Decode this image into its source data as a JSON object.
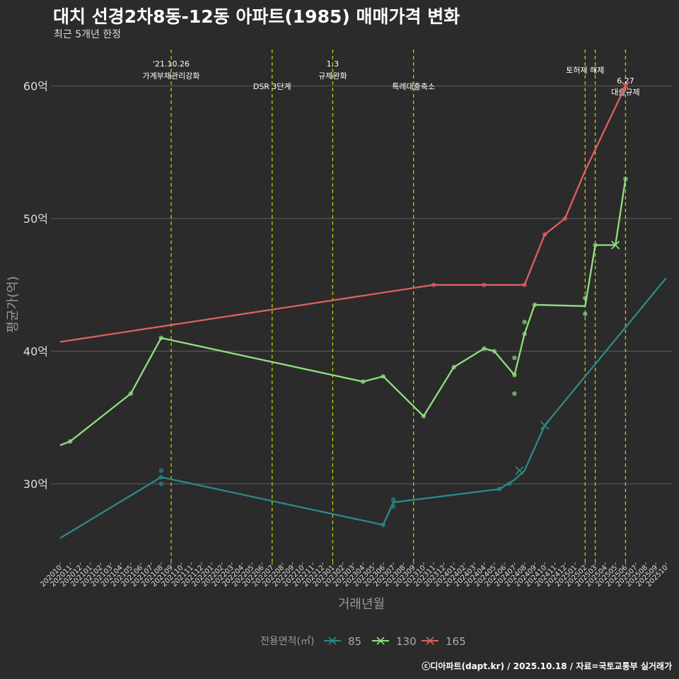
{
  "title": "대치 선경2차8동-12동 아파트(1985) 매매가격 변화",
  "subtitle": "최근 5개년 한정",
  "footer": "ⓒ디아파트(dapt.kr) / 2025.10.18 / 자료=국토교통부 실거래가",
  "colors": {
    "background": "#2b2b2b",
    "grid": "#555555",
    "event_line": "#c8c800",
    "s85": "#2a8a8a",
    "s130": "#90e080",
    "s165": "#e06060"
  },
  "chart_data": {
    "type": "line",
    "xlabel": "거래년월",
    "ylabel": "평균가(억)",
    "ylim": [
      24.5,
      62.5
    ],
    "yticks": [
      30,
      40,
      50,
      60
    ],
    "ytick_labels": [
      "30억",
      "40억",
      "50억",
      "60억"
    ],
    "xlim": [
      0,
      60
    ],
    "categories": [
      "202010",
      "202011",
      "202012",
      "202101",
      "202102",
      "202103",
      "202104",
      "202105",
      "202106",
      "202107",
      "202108",
      "202109",
      "202110",
      "202111",
      "202112",
      "202201",
      "202202",
      "202203",
      "202204",
      "202205",
      "202206",
      "202207",
      "202208",
      "202209",
      "202210",
      "202211",
      "202212",
      "202301",
      "202302",
      "202303",
      "202304",
      "202305",
      "202306",
      "202307",
      "202308",
      "202309",
      "202310",
      "202311",
      "202312",
      "202401",
      "202402",
      "202403",
      "202404",
      "202405",
      "202406",
      "202407",
      "202408",
      "202409",
      "202410",
      "202411",
      "202412",
      "202501",
      "202502",
      "202503",
      "202504",
      "202505",
      "202506",
      "202507",
      "202508",
      "202509",
      "202510"
    ],
    "legend_title": "전용면적(㎡)",
    "legend_position": "bottom",
    "series": [
      {
        "name": "85",
        "color_key": "s85",
        "line": [
          [
            0,
            25.9
          ],
          [
            10,
            30.5
          ],
          [
            32,
            26.9
          ],
          [
            33,
            28.6
          ],
          [
            43.5,
            29.6
          ],
          [
            45,
            30.3
          ],
          [
            46,
            31.0
          ],
          [
            48,
            34.4
          ],
          [
            60,
            45.5
          ]
        ],
        "points": [
          [
            10,
            31.0
          ],
          [
            10,
            30.0
          ],
          [
            10,
            30.5
          ],
          [
            32,
            26.9
          ],
          [
            33,
            28.3
          ],
          [
            33,
            28.8
          ],
          [
            43.5,
            29.6
          ],
          [
            44.5,
            30.0
          ]
        ],
        "cross": [
          [
            45.5,
            31.0
          ],
          [
            48,
            34.4
          ]
        ]
      },
      {
        "name": "130",
        "color_key": "s130",
        "line": [
          [
            0,
            32.9
          ],
          [
            1,
            33.2
          ],
          [
            7,
            36.8
          ],
          [
            10,
            41.0
          ],
          [
            30,
            37.7
          ],
          [
            32,
            38.1
          ],
          [
            36,
            35.1
          ],
          [
            39,
            38.8
          ],
          [
            42,
            40.2
          ],
          [
            43,
            40.0
          ],
          [
            45,
            38.2
          ],
          [
            46,
            41.3
          ],
          [
            47,
            43.5
          ],
          [
            52,
            43.4
          ],
          [
            53,
            48.0
          ],
          [
            55,
            48.0
          ],
          [
            56,
            53.0
          ]
        ],
        "points": [
          [
            1,
            33.2
          ],
          [
            7,
            36.8
          ],
          [
            10,
            41.0
          ],
          [
            30,
            37.7
          ],
          [
            32,
            38.1
          ],
          [
            36,
            35.1
          ],
          [
            39,
            38.8
          ],
          [
            42,
            40.2
          ],
          [
            43,
            40.0
          ],
          [
            45,
            39.5
          ],
          [
            45,
            36.8
          ],
          [
            45,
            38.2
          ],
          [
            46,
            41.3
          ],
          [
            46,
            42.2
          ],
          [
            47,
            43.5
          ],
          [
            52,
            44.0
          ],
          [
            52,
            42.8
          ],
          [
            53,
            48.0
          ],
          [
            56,
            53.0
          ]
        ],
        "cross": [
          [
            55,
            48.0
          ]
        ]
      },
      {
        "name": "165",
        "color_key": "s165",
        "line": [
          [
            0,
            40.7
          ],
          [
            37,
            45.0
          ],
          [
            42,
            45.0
          ],
          [
            46,
            45.0
          ],
          [
            48,
            48.8
          ],
          [
            50,
            50.0
          ],
          [
            52,
            53.6
          ],
          [
            56,
            60.0
          ]
        ],
        "points": [
          [
            37,
            45.0
          ],
          [
            42,
            45.0
          ],
          [
            46,
            45.0
          ],
          [
            48,
            48.8
          ],
          [
            50,
            50.0
          ]
        ],
        "cross": [
          [
            56,
            60.0
          ]
        ]
      }
    ],
    "events": [
      {
        "x": 11,
        "label1": "'21.10.26",
        "label2": "가계부채관리강화"
      },
      {
        "x": 21,
        "label1": "",
        "label2": "DSR 3단계"
      },
      {
        "x": 27,
        "label1": "1.3",
        "label2": "규제완화"
      },
      {
        "x": 35,
        "label1": "",
        "label2": "특례대출축소"
      },
      {
        "x": 52,
        "label1": "토허제 해제",
        "label2": ""
      },
      {
        "x": 53,
        "label1": "",
        "label2": ""
      },
      {
        "x": 56,
        "label1": "6.27",
        "label2": "대출규제"
      }
    ]
  }
}
